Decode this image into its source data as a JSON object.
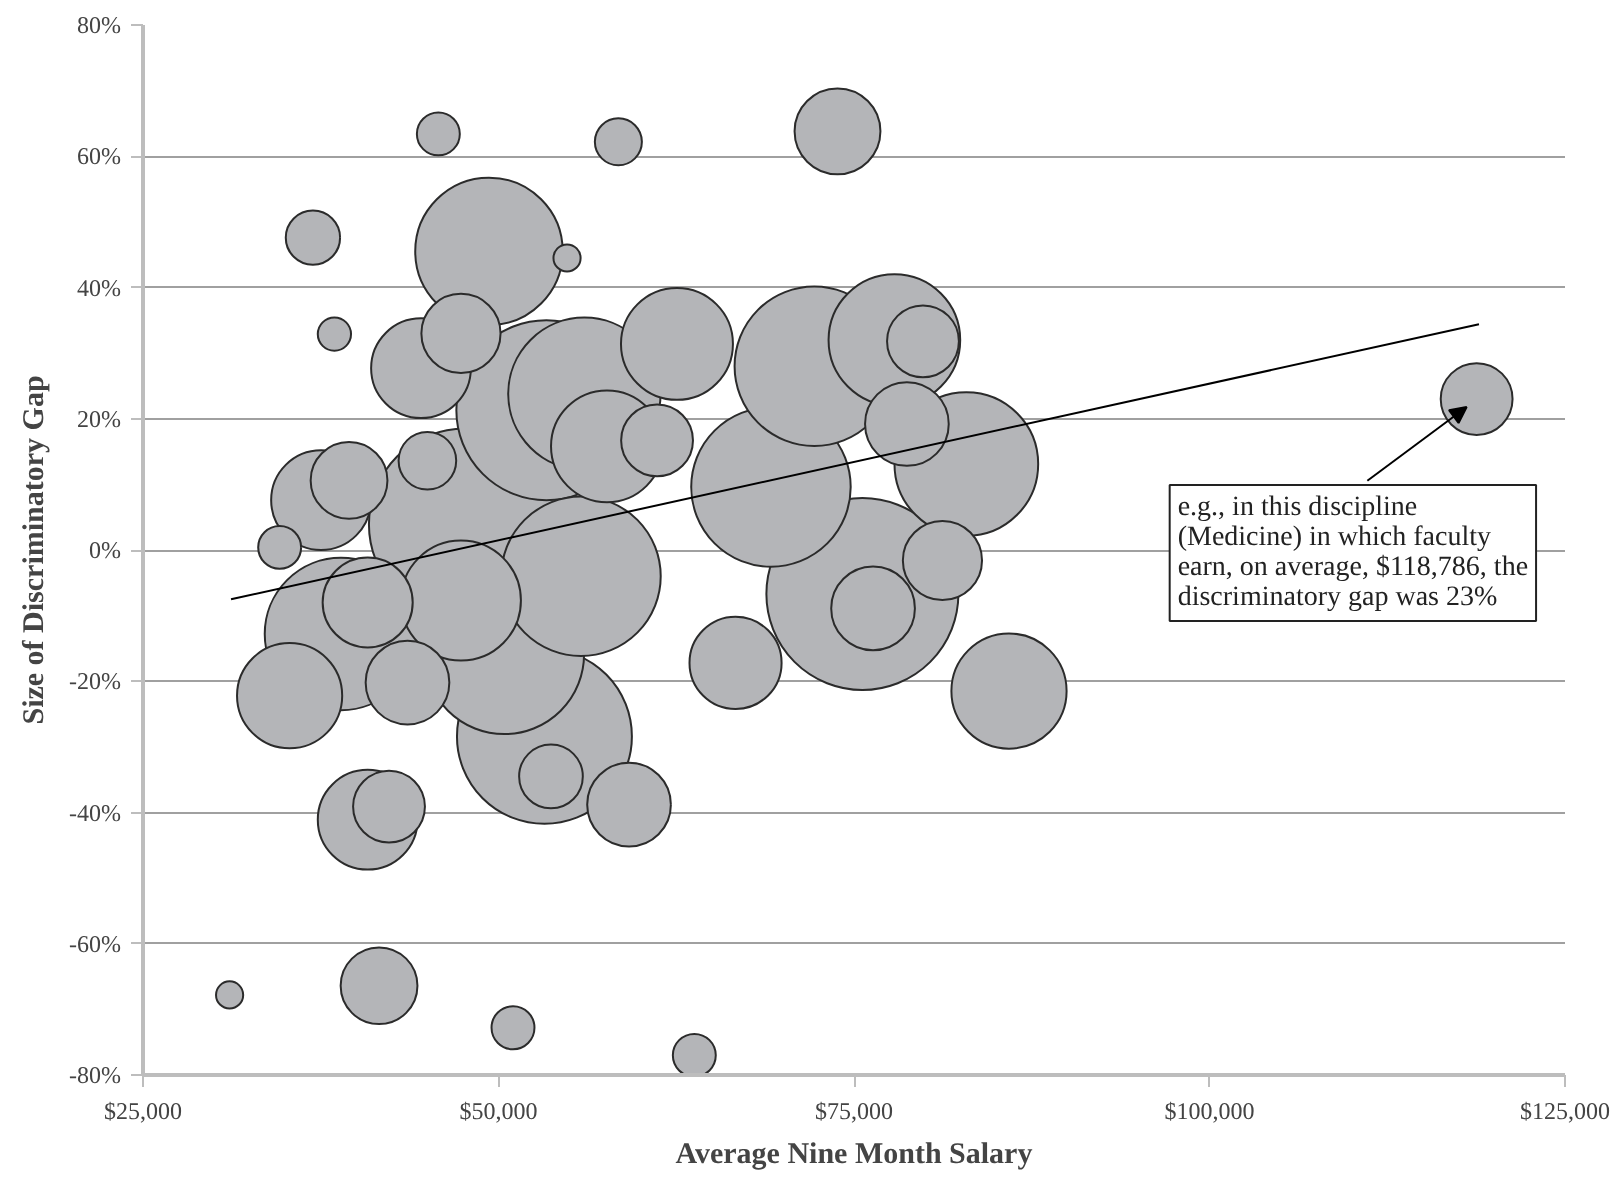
{
  "chart_data": {
    "type": "bubble",
    "xlabel": "Average Nine Month Salary",
    "ylabel": "Size of Discriminatory Gap",
    "xlim": [
      25000,
      125000
    ],
    "xticks": [
      {
        "value": 25000,
        "label": "$25,000"
      },
      {
        "value": 50000,
        "label": "$50,000"
      },
      {
        "value": 75000,
        "label": "$75,000"
      },
      {
        "value": 100000,
        "label": "$100,000"
      },
      {
        "value": 125000,
        "label": "$125,000"
      }
    ],
    "ylim": [
      -80,
      80
    ],
    "yticks": [
      {
        "value": -80,
        "label": "-80%"
      },
      {
        "value": -60,
        "label": "-60%"
      },
      {
        "value": -40,
        "label": "-40%"
      },
      {
        "value": -20,
        "label": "-20%"
      },
      {
        "value": 0,
        "label": "0%"
      },
      {
        "value": 20,
        "label": "20%"
      },
      {
        "value": 40,
        "label": "40%"
      },
      {
        "value": 60,
        "label": "60%"
      },
      {
        "value": 80,
        "label": "80%"
      }
    ],
    "grid": "y",
    "series": [
      {
        "color": "#b4b5b8",
        "x": [
          75590,
          47640,
          53370,
          53230,
          69160,
          72210,
          50410,
          55800,
          38920,
          56040,
          49330,
          82900,
          77840,
          47360,
          62550,
          57630,
          85900,
          35310,
          44550,
          37520,
          40800,
          66670,
          40800,
          73840,
          43600,
          59180,
          78720,
          76340,
          81220,
          47360,
          39490,
          41600,
          118786,
          42300,
          79850,
          61150,
          53690,
          45000,
          36950,
          58430,
          45770,
          34610,
          51020,
          63770,
          38460,
          31090,
          54820
        ],
        "values": [
          -6.7,
          3.9,
          21.3,
          -28.4,
          9.6,
          28,
          -15.9,
          -4,
          -12.8,
          23.8,
          45.5,
          13.1,
          32,
          -7.7,
          31.4,
          15.8,
          -21.5,
          -22.2,
          27.7,
          7.6,
          -41.1,
          -17.2,
          -8,
          63.8,
          -20.2,
          -38.8,
          19.2,
          -8.9,
          -1.6,
          33,
          10.6,
          -66.4,
          23,
          -39.1,
          31.8,
          16.7,
          -34.5,
          13.6,
          47.6,
          62.2,
          63.4,
          0.4,
          -72.8,
          -77,
          32.9,
          -67.8,
          44.5
        ],
        "sizes": [
          1,
          1,
          0.88,
          0.83,
          0.69,
          0.69,
          0.69,
          0.69,
          0.63,
          0.63,
          0.59,
          0.56,
          0.47,
          0.39,
          0.34,
          0.34,
          0.36,
          0.3,
          0.27,
          0.27,
          0.27,
          0.23,
          0.22,
          0.2,
          0.19,
          0.19,
          0.19,
          0.19,
          0.17,
          0.17,
          0.16,
          0.16,
          0.14,
          0.14,
          0.14,
          0.14,
          0.11,
          0.09,
          0.08,
          0.06,
          0.05,
          0.05,
          0.05,
          0.05,
          0.03,
          0.02,
          0.02
        ]
      },
      {
        "type": "line",
        "color": "#000000",
        "x": [
          31190,
          118950
        ],
        "values": [
          -7.5,
          34.4
        ]
      }
    ],
    "annotations": [
      {
        "text": "e.g., in this discipline\n(Medicine) in which faculty\nearn, on average, $118,786, the\ndiscriminatory gap was 23%",
        "x": 118786,
        "y": 23
      }
    ]
  }
}
